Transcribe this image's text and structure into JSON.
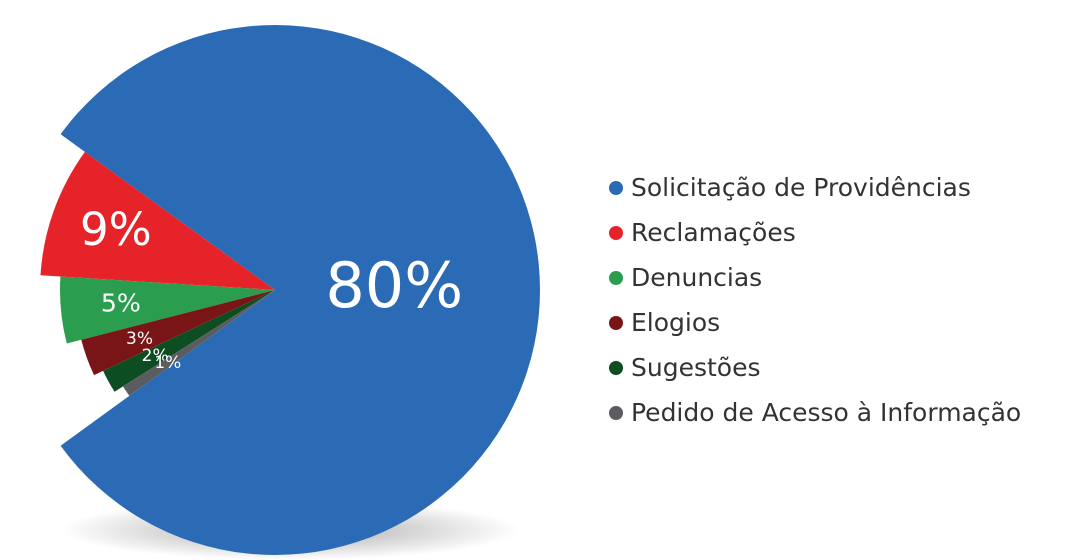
{
  "chart_data": {
    "type": "pie",
    "categories": [
      "Solicitação de Providências",
      "Reclamações",
      "Denuncias",
      "Elogios",
      "Sugestões",
      "Pedido de Acesso à Informação"
    ],
    "values": [
      80,
      9,
      5,
      3,
      2,
      1
    ],
    "value_labels": [
      "80%",
      "9%",
      "5%",
      "3%",
      "2%",
      "1%"
    ],
    "colors": [
      "#2b6bb5",
      "#e52329",
      "#2a9e4e",
      "#7a1517",
      "#0d4d22",
      "#5a5c60"
    ],
    "legend": "right"
  }
}
